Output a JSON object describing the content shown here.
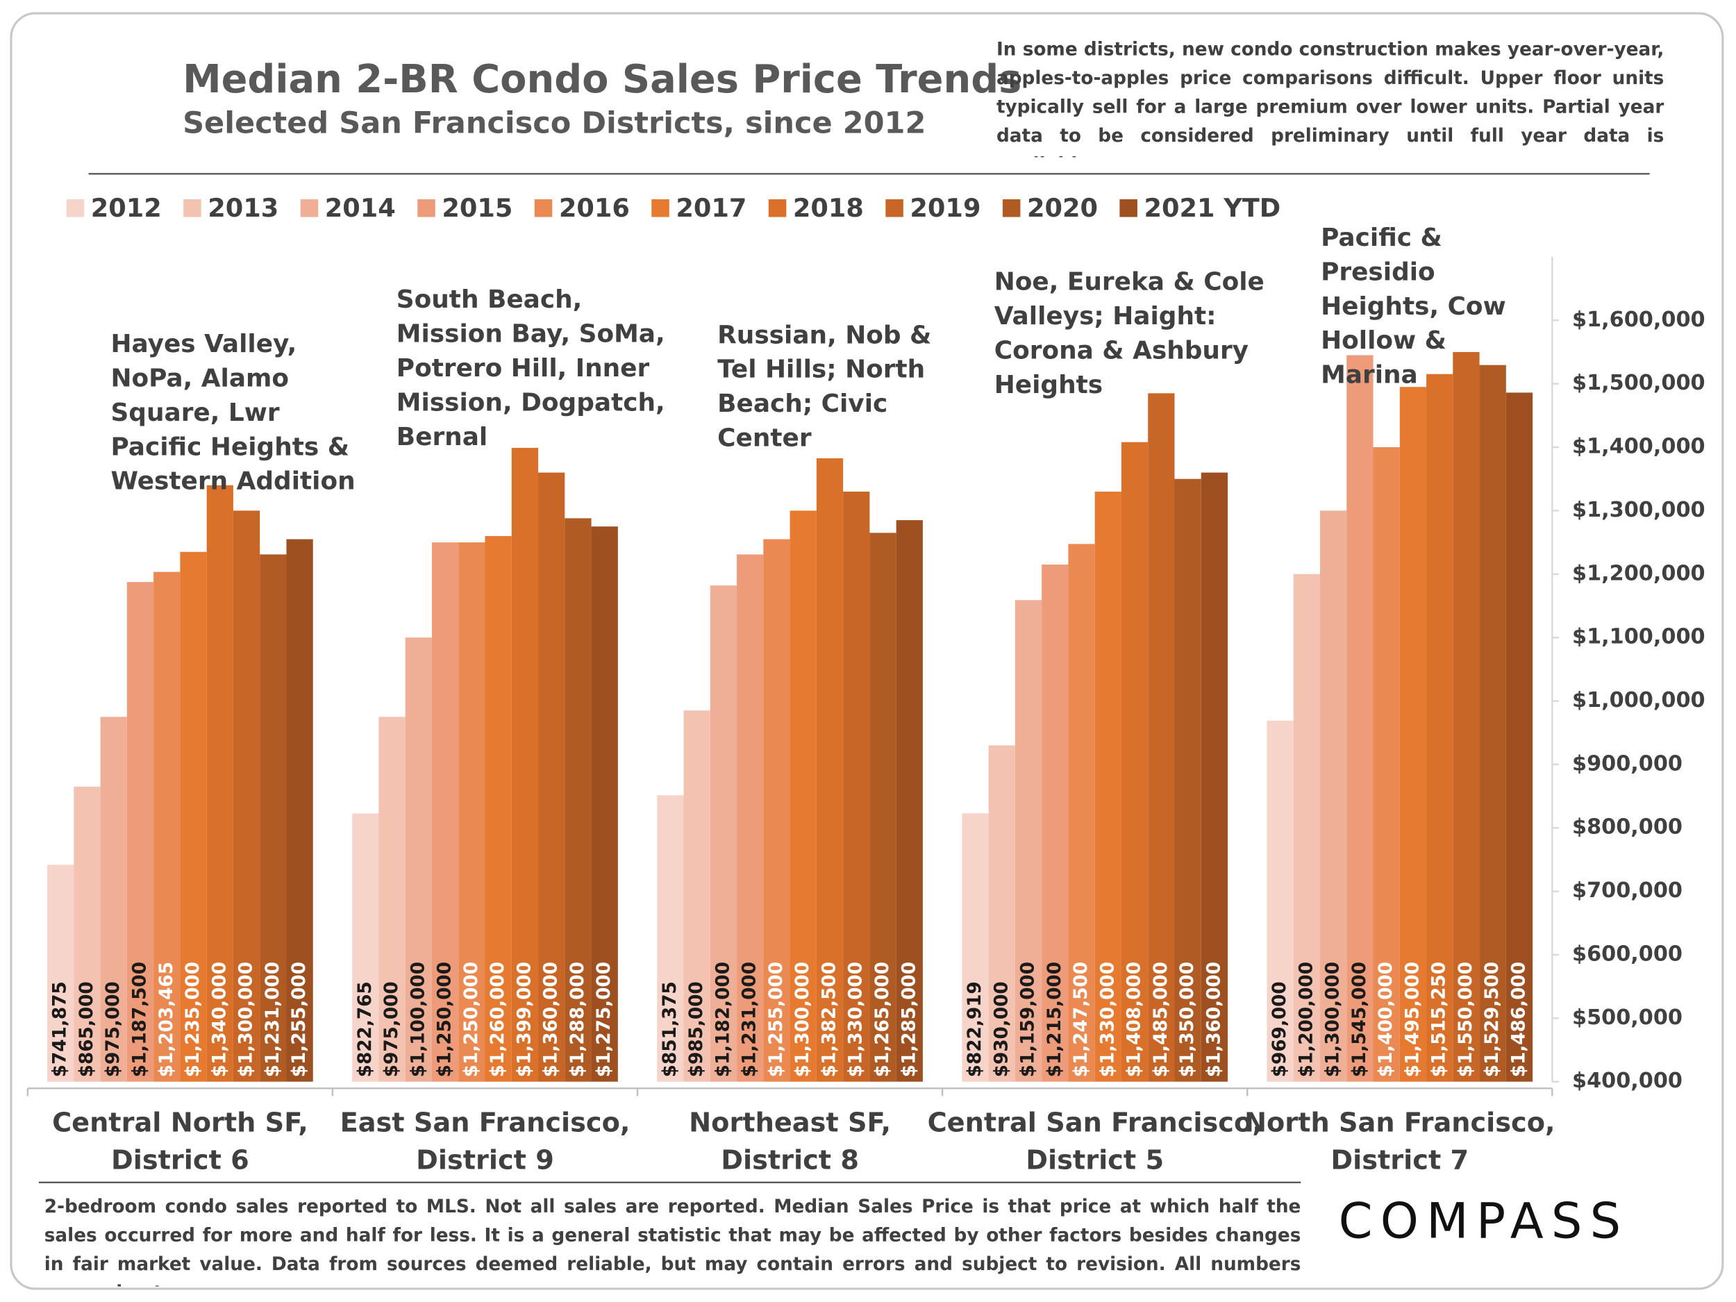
{
  "chart_data": {
    "type": "bar",
    "title": "Median 2-BR Condo Sales Price Trends",
    "subtitle": "Selected San Francisco Districts, since 2012",
    "note": "In some districts, new condo construction makes year-over-year, apples-to-apples price comparisons difficult. Upper floor units typically sell for a large premium over lower units. Partial year data to be considered preliminary until full year data is available.",
    "footnote": "2-bedroom condo sales reported to MLS. Not all sales are reported. Median Sales Price is that price at which half the sales occurred for more and half for less. It is a general statistic that may be affected by other factors besides changes in fair market value. Data from sources deemed reliable, but may contain errors and subject to revision.  All numbers approximate.",
    "logo": "COMPASS",
    "categories": [
      "Central North SF, District 6",
      "East San Francisco, District 9",
      "Northeast SF, District 8",
      "Central San Francisco, District 5",
      "North San Francisco, District 7"
    ],
    "annotations": [
      "Hayes Valley, NoPa, Alamo Square, Lwr Pacific Heights & Western Addition",
      "South Beach, Mission Bay, SoMa, Potrero Hill, Inner Mission, Dogpatch, Bernal",
      "Russian, Nob & Tel Hills; North Beach; Civic Center",
      "Noe, Eureka & Cole Valleys; Haight: Corona & Ashbury Heights",
      "Pacific & Presidio Heights, Cow Hollow & Marina"
    ],
    "series": [
      {
        "name": "2012",
        "color": "#f6d4c9",
        "values": [
          741875,
          822765,
          851375,
          822919,
          969000
        ],
        "value_labels": [
          "$741,875",
          "$822,765",
          "$851,375",
          "$822,919",
          "$969,000"
        ]
      },
      {
        "name": "2013",
        "color": "#f3c2b0",
        "values": [
          865000,
          975000,
          985000,
          930000,
          1200000
        ],
        "value_labels": [
          "$865,000",
          "$975,000",
          "$985,000",
          "$930,000",
          "$1,200,000"
        ]
      },
      {
        "name": "2014",
        "color": "#efae96",
        "values": [
          975000,
          1100000,
          1182000,
          1159000,
          1300000
        ],
        "value_labels": [
          "$975,000",
          "$1,100,000",
          "$1,182,000",
          "$1,159,000",
          "$1,300,000"
        ]
      },
      {
        "name": "2015",
        "color": "#ed9b78",
        "values": [
          1187500,
          1250000,
          1231000,
          1215000,
          1545000
        ],
        "value_labels": [
          "$1,187,500",
          "$1,250,000",
          "$1,231,000",
          "$1,215,000",
          "$1,545,000"
        ]
      },
      {
        "name": "2016",
        "color": "#ea8a52",
        "values": [
          1203465,
          1250000,
          1255000,
          1247500,
          1400000
        ],
        "value_labels": [
          "$1,203,465",
          "$1,250,000",
          "$1,255,000",
          "$1,247,500",
          "$1,400,000"
        ]
      },
      {
        "name": "2017",
        "color": "#e67a31",
        "values": [
          1235000,
          1260000,
          1300000,
          1330000,
          1495000
        ],
        "value_labels": [
          "$1,235,000",
          "$1,260,000",
          "$1,300,000",
          "$1,330,000",
          "$1,495,000"
        ]
      },
      {
        "name": "2018",
        "color": "#da712b",
        "values": [
          1340000,
          1399000,
          1382500,
          1408000,
          1515250
        ],
        "value_labels": [
          "$1,340,000",
          "$1,399,000",
          "$1,382,500",
          "$1,408,000",
          "$1,515,250"
        ]
      },
      {
        "name": "2019",
        "color": "#c86628",
        "values": [
          1300000,
          1360000,
          1330000,
          1485000,
          1550000
        ],
        "value_labels": [
          "$1,300,000",
          "$1,360,000",
          "$1,330,000",
          "$1,485,000",
          "$1,550,000"
        ]
      },
      {
        "name": "2020",
        "color": "#b05a24",
        "values": [
          1231000,
          1288000,
          1265000,
          1350000,
          1529500
        ],
        "value_labels": [
          "$1,231,000",
          "$1,288,000",
          "$1,265,000",
          "$1,350,000",
          "$1,529,500"
        ]
      },
      {
        "name": "2021 YTD",
        "color": "#9e5020",
        "values": [
          1255000,
          1275000,
          1285000,
          1360000,
          1486000
        ],
        "value_labels": [
          "$1,255,000",
          "$1,275,000",
          "$1,285,000",
          "$1,360,000",
          "$1,486,000"
        ]
      }
    ],
    "ylim": [
      400000,
      1700000
    ],
    "yticks": [
      {
        "value": 400000,
        "label": "$400,000"
      },
      {
        "value": 500000,
        "label": "$500,000"
      },
      {
        "value": 600000,
        "label": "$600,000"
      },
      {
        "value": 700000,
        "label": "$700,000"
      },
      {
        "value": 800000,
        "label": "$800,000"
      },
      {
        "value": 900000,
        "label": "$900,000"
      },
      {
        "value": 1000000,
        "label": "$1,000,000"
      },
      {
        "value": 1100000,
        "label": "$1,100,000"
      },
      {
        "value": 1200000,
        "label": "$1,200,000"
      },
      {
        "value": 1300000,
        "label": "$1,300,000"
      },
      {
        "value": 1400000,
        "label": "$1,400,000"
      },
      {
        "value": 1500000,
        "label": "$1,500,000"
      },
      {
        "value": 1600000,
        "label": "$1,600,000"
      }
    ],
    "y_axis_side": "right",
    "grid": false
  }
}
